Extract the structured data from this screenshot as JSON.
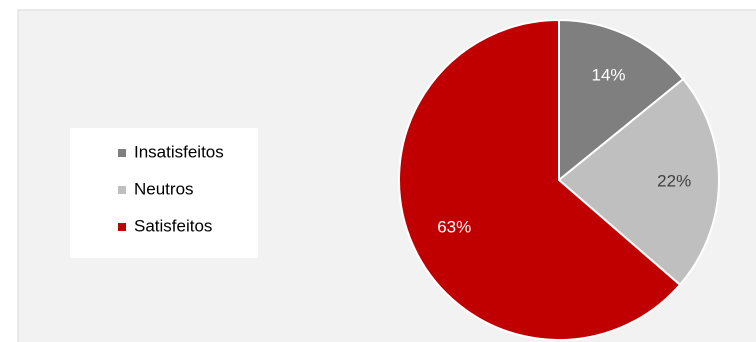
{
  "chart_data": {
    "type": "pie",
    "categories": [
      "Insatisfeitos",
      "Neutros",
      "Satisfeitos"
    ],
    "values": [
      14,
      22,
      63
    ],
    "value_labels": [
      "14%",
      "22%",
      "63%"
    ],
    "colors": [
      "#7f7f7f",
      "#bfbfbf",
      "#c00000"
    ],
    "legend": "left"
  }
}
